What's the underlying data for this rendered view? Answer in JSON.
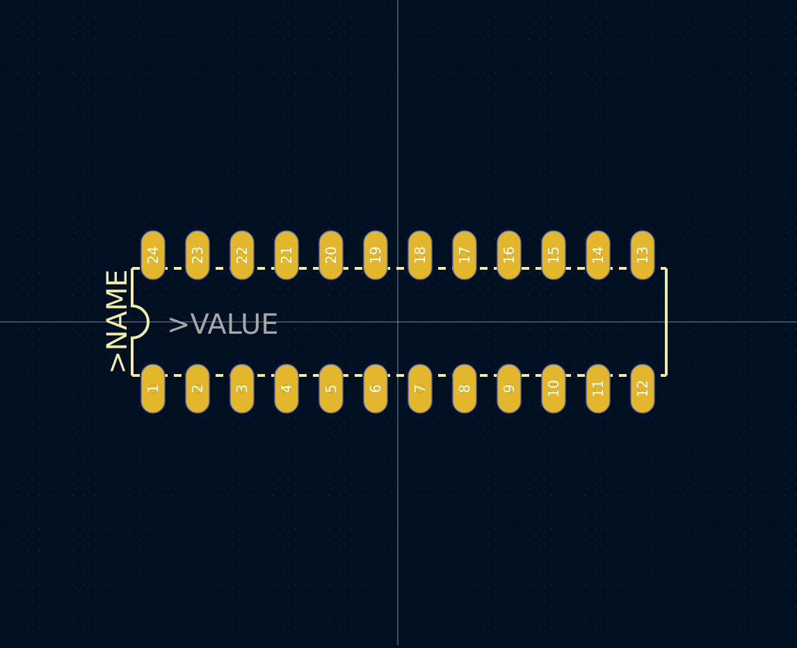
{
  "footprint": {
    "name_label": ">NAME",
    "value_label": ">VALUE",
    "pins_bottom": [
      "1",
      "2",
      "3",
      "4",
      "5",
      "6",
      "7",
      "8",
      "9",
      "10",
      "11",
      "12"
    ],
    "pins_top": [
      "24",
      "23",
      "22",
      "21",
      "20",
      "19",
      "18",
      "17",
      "16",
      "15",
      "14",
      "13"
    ]
  },
  "colors": {
    "background": "#001023",
    "grid_dot": "#3b4658",
    "crosshair": "#9aa0a8",
    "pad_fill": "#e3b72c",
    "pad_stroke": "#5866a8",
    "silkscreen": "#f2eca4",
    "value_text": "#a6a6a6",
    "pad_text": "#ffffff"
  }
}
